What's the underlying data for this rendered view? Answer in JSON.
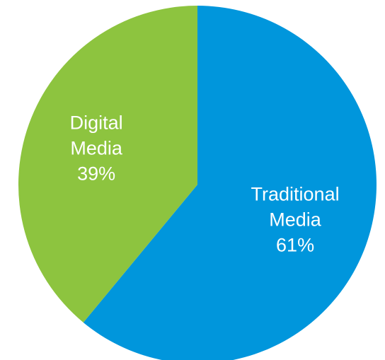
{
  "chart_data": {
    "type": "pie",
    "slices": [
      {
        "category": "Traditional Media",
        "label_lines": [
          "Traditional",
          "Media"
        ],
        "value": 61,
        "value_label": "61%",
        "color": "#0096DC"
      },
      {
        "category": "Digital Media",
        "label_lines": [
          "Digital",
          "Media"
        ],
        "value": 39,
        "value_label": "39%",
        "color": "#8DC43F"
      }
    ],
    "start": "12 o'clock",
    "direction": "clockwise",
    "legend": "none"
  }
}
